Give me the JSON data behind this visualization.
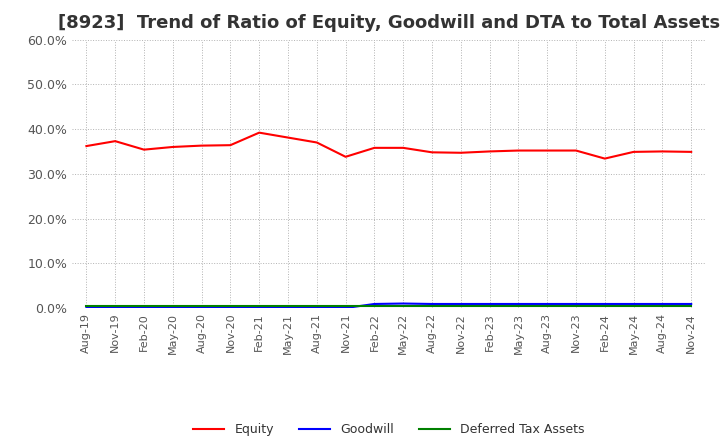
{
  "title": "[8923]  Trend of Ratio of Equity, Goodwill and DTA to Total Assets",
  "x_labels": [
    "Aug-19",
    "Nov-19",
    "Feb-20",
    "May-20",
    "Aug-20",
    "Nov-20",
    "Feb-21",
    "May-21",
    "Aug-21",
    "Nov-21",
    "Feb-22",
    "May-22",
    "Aug-22",
    "Nov-22",
    "Feb-23",
    "May-23",
    "Aug-23",
    "Nov-23",
    "Feb-24",
    "May-24",
    "Aug-24",
    "Nov-24"
  ],
  "equity": [
    0.362,
    0.373,
    0.354,
    0.36,
    0.363,
    0.364,
    0.392,
    0.381,
    0.37,
    0.338,
    0.358,
    0.358,
    0.348,
    0.347,
    0.35,
    0.352,
    0.352,
    0.352,
    0.334,
    0.349,
    0.35,
    0.349
  ],
  "goodwill": [
    0.0,
    0.0,
    0.0,
    0.0,
    0.0,
    0.0,
    0.0,
    0.0,
    0.0,
    0.0,
    0.009,
    0.01,
    0.009,
    0.009,
    0.009,
    0.009,
    0.009,
    0.009,
    0.009,
    0.009,
    0.009,
    0.009
  ],
  "dta": [
    0.005,
    0.005,
    0.005,
    0.005,
    0.005,
    0.005,
    0.005,
    0.005,
    0.005,
    0.005,
    0.005,
    0.005,
    0.005,
    0.005,
    0.005,
    0.005,
    0.005,
    0.005,
    0.005,
    0.005,
    0.005,
    0.005
  ],
  "equity_color": "#FF0000",
  "goodwill_color": "#0000FF",
  "dta_color": "#008000",
  "background_color": "#FFFFFF",
  "plot_bg_color": "#FFFFFF",
  "grid_color": "#AAAAAA",
  "ylim": [
    0.0,
    0.6
  ],
  "yticks": [
    0.0,
    0.1,
    0.2,
    0.3,
    0.4,
    0.5,
    0.6
  ],
  "legend_labels": [
    "Equity",
    "Goodwill",
    "Deferred Tax Assets"
  ],
  "title_fontsize": 13,
  "tick_fontsize": 8,
  "ytick_fontsize": 9
}
